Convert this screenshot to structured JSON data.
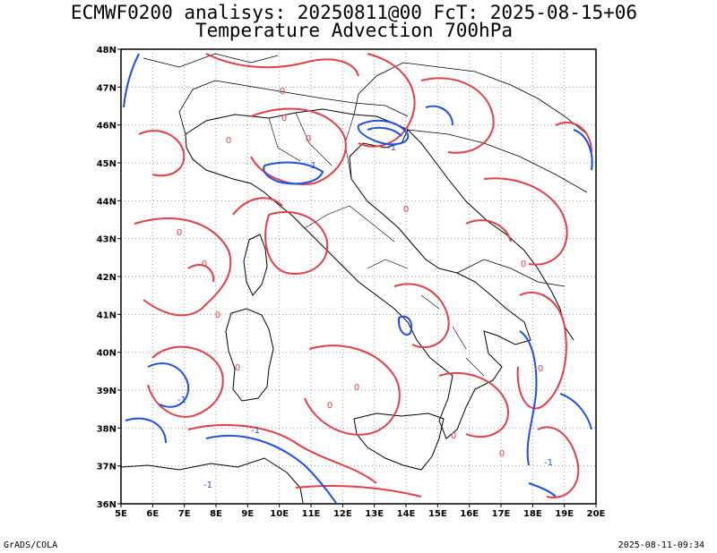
{
  "title_line1": "ECMWF0200 analisys: 20250811@00 FcT: 2025-08-15+06",
  "title_line2": "Temperature Advection 700hPa",
  "lon_labels": [
    "5E",
    "6E",
    "7E",
    "8E",
    "9E",
    "10E",
    "11E",
    "12E",
    "13E",
    "14E",
    "15E",
    "16E",
    "17E",
    "18E",
    "19E",
    "20E"
  ],
  "lat_labels": [
    "48N",
    "47N",
    "46N",
    "45N",
    "44N",
    "43N",
    "42N",
    "41N",
    "40N",
    "39N",
    "38N",
    "37N",
    "36N"
  ],
  "contour_labels": {
    "warm": "0",
    "cold": "-1"
  },
  "footer_left": "GrADS/COLA",
  "footer_right": "2025-08-11-09:34",
  "colors": {
    "warm_contour": "#e0404a",
    "cold_contour": "#2050e0",
    "coast": "#000000",
    "grid": "#999999"
  }
}
